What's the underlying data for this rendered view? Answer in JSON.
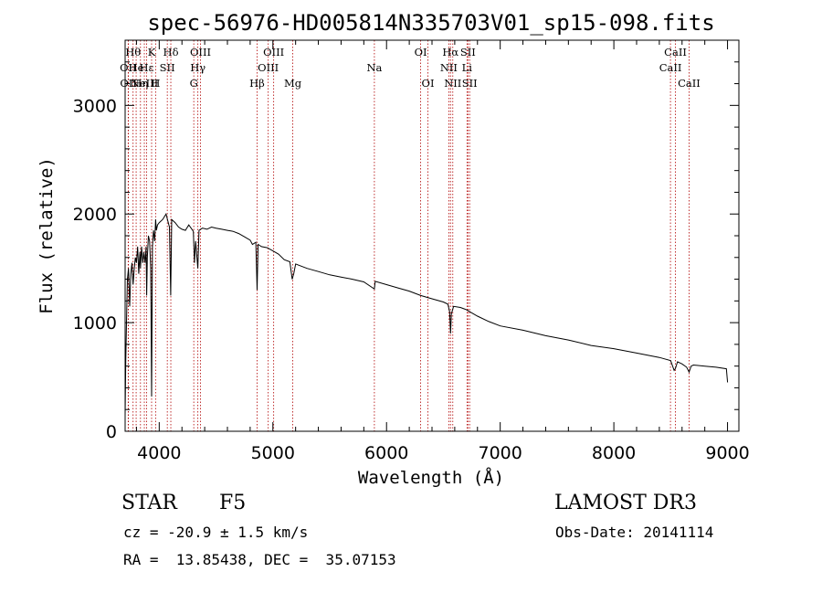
{
  "chart_data": {
    "type": "line",
    "title": "spec-56976-HD005814N335703V01_sp15-098.fits",
    "xlabel": "Wavelength (Å)",
    "ylabel": "Flux (relative)",
    "xlim": [
      3700,
      9100
    ],
    "ylim": [
      0,
      3600
    ],
    "xticks": [
      4000,
      5000,
      6000,
      7000,
      8000,
      9000
    ],
    "yticks": [
      0,
      1000,
      2000,
      3000
    ],
    "series": [
      {
        "name": "flux",
        "x": [
          3700,
          3706,
          3712,
          3720,
          3730,
          3740,
          3750,
          3760,
          3770,
          3780,
          3790,
          3800,
          3810,
          3820,
          3830,
          3835,
          3845,
          3855,
          3865,
          3875,
          3885,
          3890,
          3895,
          3905,
          3915,
          3925,
          3933,
          3940,
          3950,
          3960,
          3968,
          3975,
          3985,
          4000,
          4030,
          4060,
          4090,
          4101,
          4110,
          4140,
          4170,
          4200,
          4230,
          4260,
          4300,
          4310,
          4320,
          4340,
          4350,
          4380,
          4420,
          4460,
          4500,
          4550,
          4600,
          4650,
          4700,
          4750,
          4800,
          4820,
          4850,
          4861,
          4870,
          4900,
          4950,
          5000,
          5050,
          5100,
          5150,
          5170,
          5183,
          5200,
          5250,
          5300,
          5400,
          5500,
          5600,
          5700,
          5800,
          5893,
          5900,
          6000,
          6100,
          6200,
          6300,
          6400,
          6500,
          6540,
          6555,
          6563,
          6570,
          6590,
          6650,
          6700,
          6800,
          6900,
          7000,
          7200,
          7400,
          7600,
          7800,
          8000,
          8200,
          8400,
          8500,
          8530,
          8542,
          8560,
          8600,
          8640,
          8662,
          8680,
          8700,
          8800,
          8900,
          8990,
          9000
        ],
        "y": [
          150,
          650,
          1000,
          1400,
          1500,
          1150,
          1450,
          1550,
          1350,
          1500,
          1600,
          1550,
          1700,
          1450,
          1650,
          1500,
          1700,
          1550,
          1650,
          1550,
          1700,
          1250,
          1600,
          1800,
          1750,
          1500,
          320,
          1700,
          1850,
          1750,
          1950,
          1850,
          1900,
          1920,
          1950,
          2000,
          1880,
          1250,
          1950,
          1920,
          1880,
          1860,
          1850,
          1900,
          1840,
          1550,
          1750,
          1500,
          1850,
          1870,
          1860,
          1880,
          1870,
          1860,
          1850,
          1840,
          1820,
          1790,
          1760,
          1720,
          1740,
          1300,
          1720,
          1700,
          1690,
          1660,
          1630,
          1580,
          1560,
          1400,
          1450,
          1540,
          1520,
          1500,
          1470,
          1440,
          1420,
          1400,
          1375,
          1310,
          1380,
          1350,
          1320,
          1290,
          1250,
          1220,
          1190,
          1170,
          1100,
          900,
          1080,
          1150,
          1140,
          1120,
          1060,
          1010,
          970,
          930,
          880,
          840,
          790,
          760,
          720,
          680,
          650,
          560,
          580,
          640,
          620,
          590,
          545,
          600,
          610,
          600,
          590,
          575,
          450
        ]
      }
    ],
    "line_markers": [
      {
        "wl": 3727,
        "label": "OII",
        "row": 1
      },
      {
        "wl": 3729,
        "label": "OII",
        "row": 2
      },
      {
        "wl": 3770,
        "label": "Hθ",
        "row": 0
      },
      {
        "wl": 3797,
        "label": "He",
        "row": 1
      },
      {
        "wl": 3835,
        "label": "Hη",
        "row": 2
      },
      {
        "wl": 3869,
        "label": "NeIII",
        "row": 2
      },
      {
        "wl": 3889,
        "label": "Hε",
        "row": 1
      },
      {
        "wl": 3933,
        "label": "K",
        "row": 0
      },
      {
        "wl": 3968,
        "label": "H",
        "row": 2
      },
      {
        "wl": 4071,
        "label": "SII",
        "row": 1
      },
      {
        "wl": 4102,
        "label": "Hδ",
        "row": 0
      },
      {
        "wl": 4304,
        "label": "G",
        "row": 2
      },
      {
        "wl": 4340,
        "label": "Hγ",
        "row": 1
      },
      {
        "wl": 4363,
        "label": "OIII",
        "row": 0
      },
      {
        "wl": 4861,
        "label": "Hβ",
        "row": 2
      },
      {
        "wl": 4959,
        "label": "OIII",
        "row": 1
      },
      {
        "wl": 5007,
        "label": "OIII",
        "row": 0
      },
      {
        "wl": 5175,
        "label": "Mg",
        "row": 2
      },
      {
        "wl": 5893,
        "label": "Na",
        "row": 1
      },
      {
        "wl": 6300,
        "label": "OI",
        "row": 0
      },
      {
        "wl": 6364,
        "label": "OI",
        "row": 2
      },
      {
        "wl": 6548,
        "label": "NII",
        "row": 1
      },
      {
        "wl": 6563,
        "label": "Hα",
        "row": 0
      },
      {
        "wl": 6583,
        "label": "NII",
        "row": 2
      },
      {
        "wl": 6708,
        "label": "Li",
        "row": 1
      },
      {
        "wl": 6716,
        "label": "SII",
        "row": 0
      },
      {
        "wl": 6731,
        "label": "SII",
        "row": 2
      },
      {
        "wl": 8498,
        "label": "CaII",
        "row": 1
      },
      {
        "wl": 8542,
        "label": "CaII",
        "row": 0
      },
      {
        "wl": 8662,
        "label": "CaII",
        "row": 2
      }
    ],
    "marker_color": "#b00000",
    "line_color": "#000000"
  },
  "info": {
    "object_class": "STAR",
    "subclass": "F5",
    "survey": "LAMOST DR3",
    "redshift": "cz = -20.9 ± 1.5 km/s",
    "obs_date": "Obs-Date: 20141114",
    "coords": "RA =  13.85438, DEC =  35.07153"
  }
}
